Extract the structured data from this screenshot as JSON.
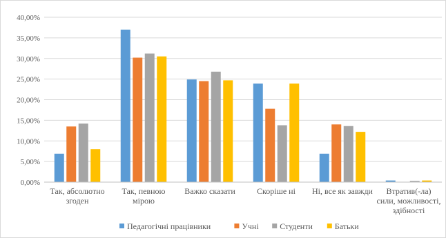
{
  "chart_data": {
    "type": "bar",
    "title": "",
    "xlabel": "",
    "ylabel": "",
    "ylim": [
      0,
      40
    ],
    "y_ticks": [
      "0,00%",
      "5,00%",
      "10,00%",
      "15,00%",
      "20,00%",
      "25,00%",
      "30,00%",
      "35,00%",
      "40,00%"
    ],
    "grid": true,
    "legend_position": "bottom",
    "categories": [
      [
        "Так, абсолютно",
        "згоден"
      ],
      [
        "Так, певною",
        "мірою"
      ],
      [
        "Важко сказати"
      ],
      [
        "Скоріше ні"
      ],
      [
        "Ні, все як завжди"
      ],
      [
        "Втратив(-ла)",
        "сили, можливості,",
        "здібності"
      ]
    ],
    "series": [
      {
        "name": "Педагогічні працівники",
        "color": "#5b9bd5",
        "values": [
          6.9,
          37.0,
          24.9,
          23.9,
          6.9,
          0.4
        ]
      },
      {
        "name": "Учні",
        "color": "#ed7d31",
        "values": [
          13.5,
          30.2,
          24.5,
          17.8,
          14.0,
          0.0
        ]
      },
      {
        "name": "Студенти",
        "color": "#a5a5a5",
        "values": [
          14.2,
          31.2,
          26.8,
          13.8,
          13.6,
          0.3
        ]
      },
      {
        "name": "Батьки",
        "color": "#ffc000",
        "values": [
          8.0,
          30.5,
          24.7,
          23.9,
          12.2,
          0.4
        ]
      }
    ]
  }
}
